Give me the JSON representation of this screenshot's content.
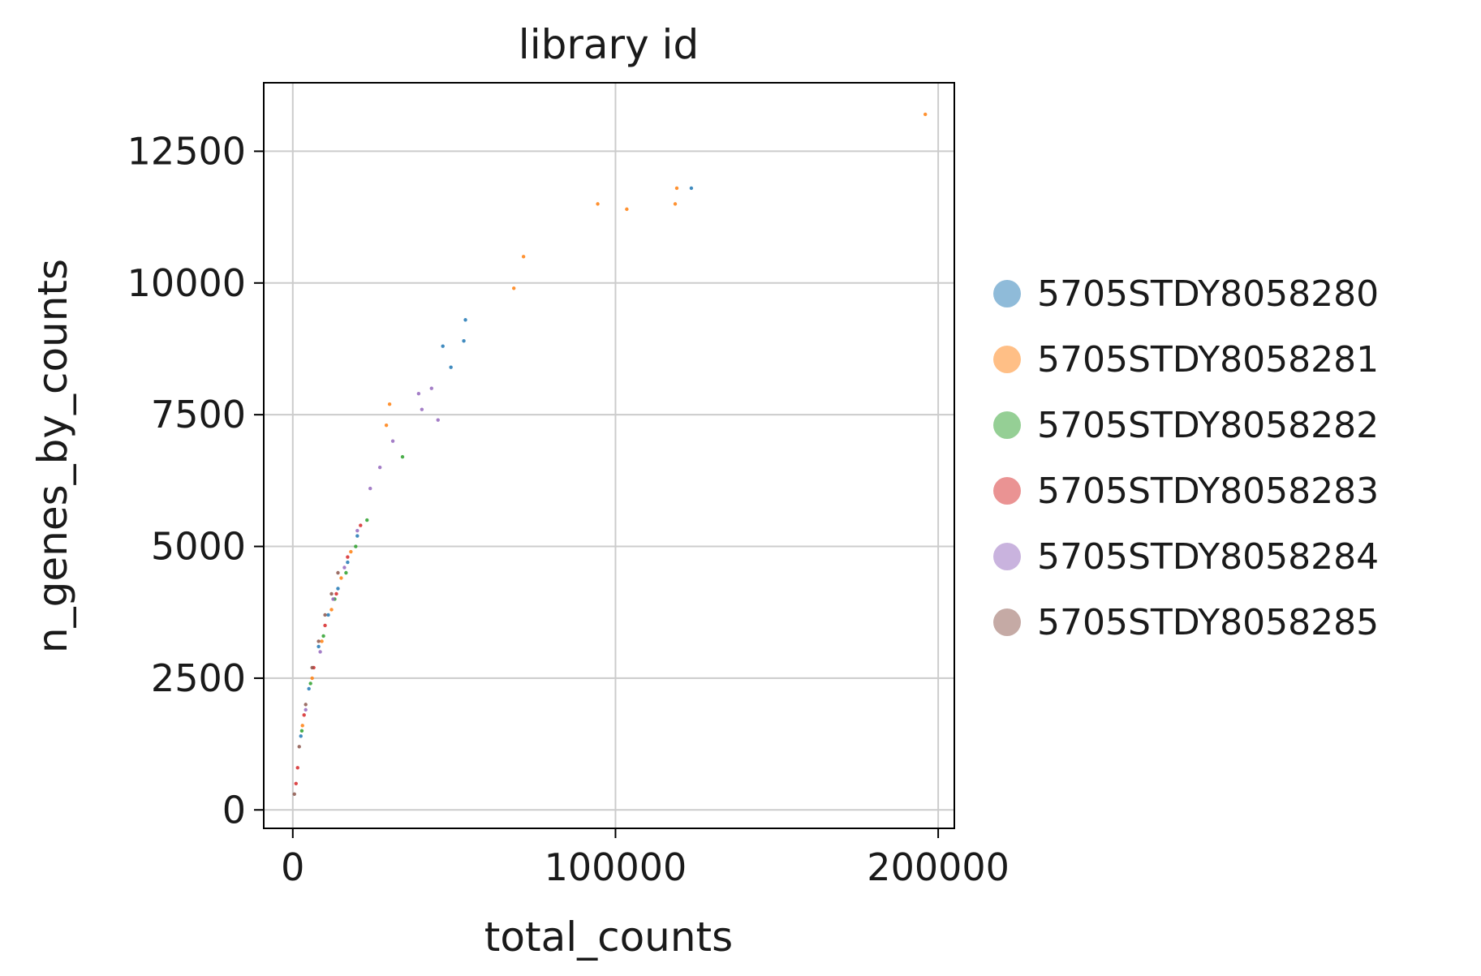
{
  "chart_data": {
    "type": "scatter",
    "title": "library id",
    "xlabel": "total_counts",
    "ylabel": "n_genes_by_counts",
    "xlim": [
      -9000,
      205000
    ],
    "ylim": [
      -350,
      13800
    ],
    "xticks": [
      0,
      100000,
      200000
    ],
    "xtick_labels": [
      "0",
      "100000",
      "200000"
    ],
    "yticks": [
      0,
      2500,
      5000,
      7500,
      10000,
      12500
    ],
    "ytick_labels": [
      "0",
      "2500",
      "5000",
      "7500",
      "10000",
      "12500"
    ],
    "grid": true,
    "legend_position": "right",
    "series": [
      {
        "name": "5705STDY8058280",
        "color": "#1f77b4",
        "points": [
          [
            2500,
            1400
          ],
          [
            5000,
            2300
          ],
          [
            8000,
            3100
          ],
          [
            11000,
            3700
          ],
          [
            14000,
            4200
          ],
          [
            17000,
            4700
          ],
          [
            20000,
            5200
          ],
          [
            46500,
            8800
          ],
          [
            49000,
            8400
          ],
          [
            53000,
            8900
          ],
          [
            53500,
            9300
          ],
          [
            123500,
            11800
          ]
        ]
      },
      {
        "name": "5705STDY8058281",
        "color": "#ff7f0e",
        "points": [
          [
            3000,
            1600
          ],
          [
            6000,
            2500
          ],
          [
            9000,
            3200
          ],
          [
            12000,
            3800
          ],
          [
            15000,
            4400
          ],
          [
            18000,
            4900
          ],
          [
            30000,
            7700
          ],
          [
            29000,
            7300
          ],
          [
            68500,
            9900
          ],
          [
            71500,
            10500
          ],
          [
            94500,
            11500
          ],
          [
            103500,
            11400
          ],
          [
            118500,
            11500
          ],
          [
            119000,
            11800
          ],
          [
            196000,
            13200
          ]
        ]
      },
      {
        "name": "5705STDY8058282",
        "color": "#2ca02c",
        "points": [
          [
            2800,
            1500
          ],
          [
            5500,
            2400
          ],
          [
            9500,
            3300
          ],
          [
            13000,
            4000
          ],
          [
            16500,
            4500
          ],
          [
            19500,
            5000
          ],
          [
            23000,
            5500
          ],
          [
            34000,
            6700
          ]
        ]
      },
      {
        "name": "5705STDY8058283",
        "color": "#d62728",
        "points": [
          [
            1000,
            500
          ],
          [
            3500,
            1800
          ],
          [
            6500,
            2700
          ],
          [
            10000,
            3500
          ],
          [
            13500,
            4100
          ],
          [
            17000,
            4800
          ],
          [
            21000,
            5400
          ],
          [
            1500,
            800
          ]
        ]
      },
      {
        "name": "5705STDY8058284",
        "color": "#9467bd",
        "points": [
          [
            4000,
            1900
          ],
          [
            8500,
            3000
          ],
          [
            12500,
            4000
          ],
          [
            16000,
            4600
          ],
          [
            20000,
            5300
          ],
          [
            24000,
            6100
          ],
          [
            27000,
            6500
          ],
          [
            31000,
            7000
          ],
          [
            39000,
            7900
          ],
          [
            40000,
            7600
          ],
          [
            43000,
            8000
          ],
          [
            45000,
            7400
          ]
        ]
      },
      {
        "name": "5705STDY8058285",
        "color": "#8c564b",
        "points": [
          [
            500,
            300
          ],
          [
            2000,
            1200
          ],
          [
            4000,
            2000
          ],
          [
            6000,
            2700
          ],
          [
            8000,
            3200
          ],
          [
            10000,
            3700
          ],
          [
            12000,
            4100
          ],
          [
            14000,
            4500
          ]
        ]
      }
    ]
  }
}
